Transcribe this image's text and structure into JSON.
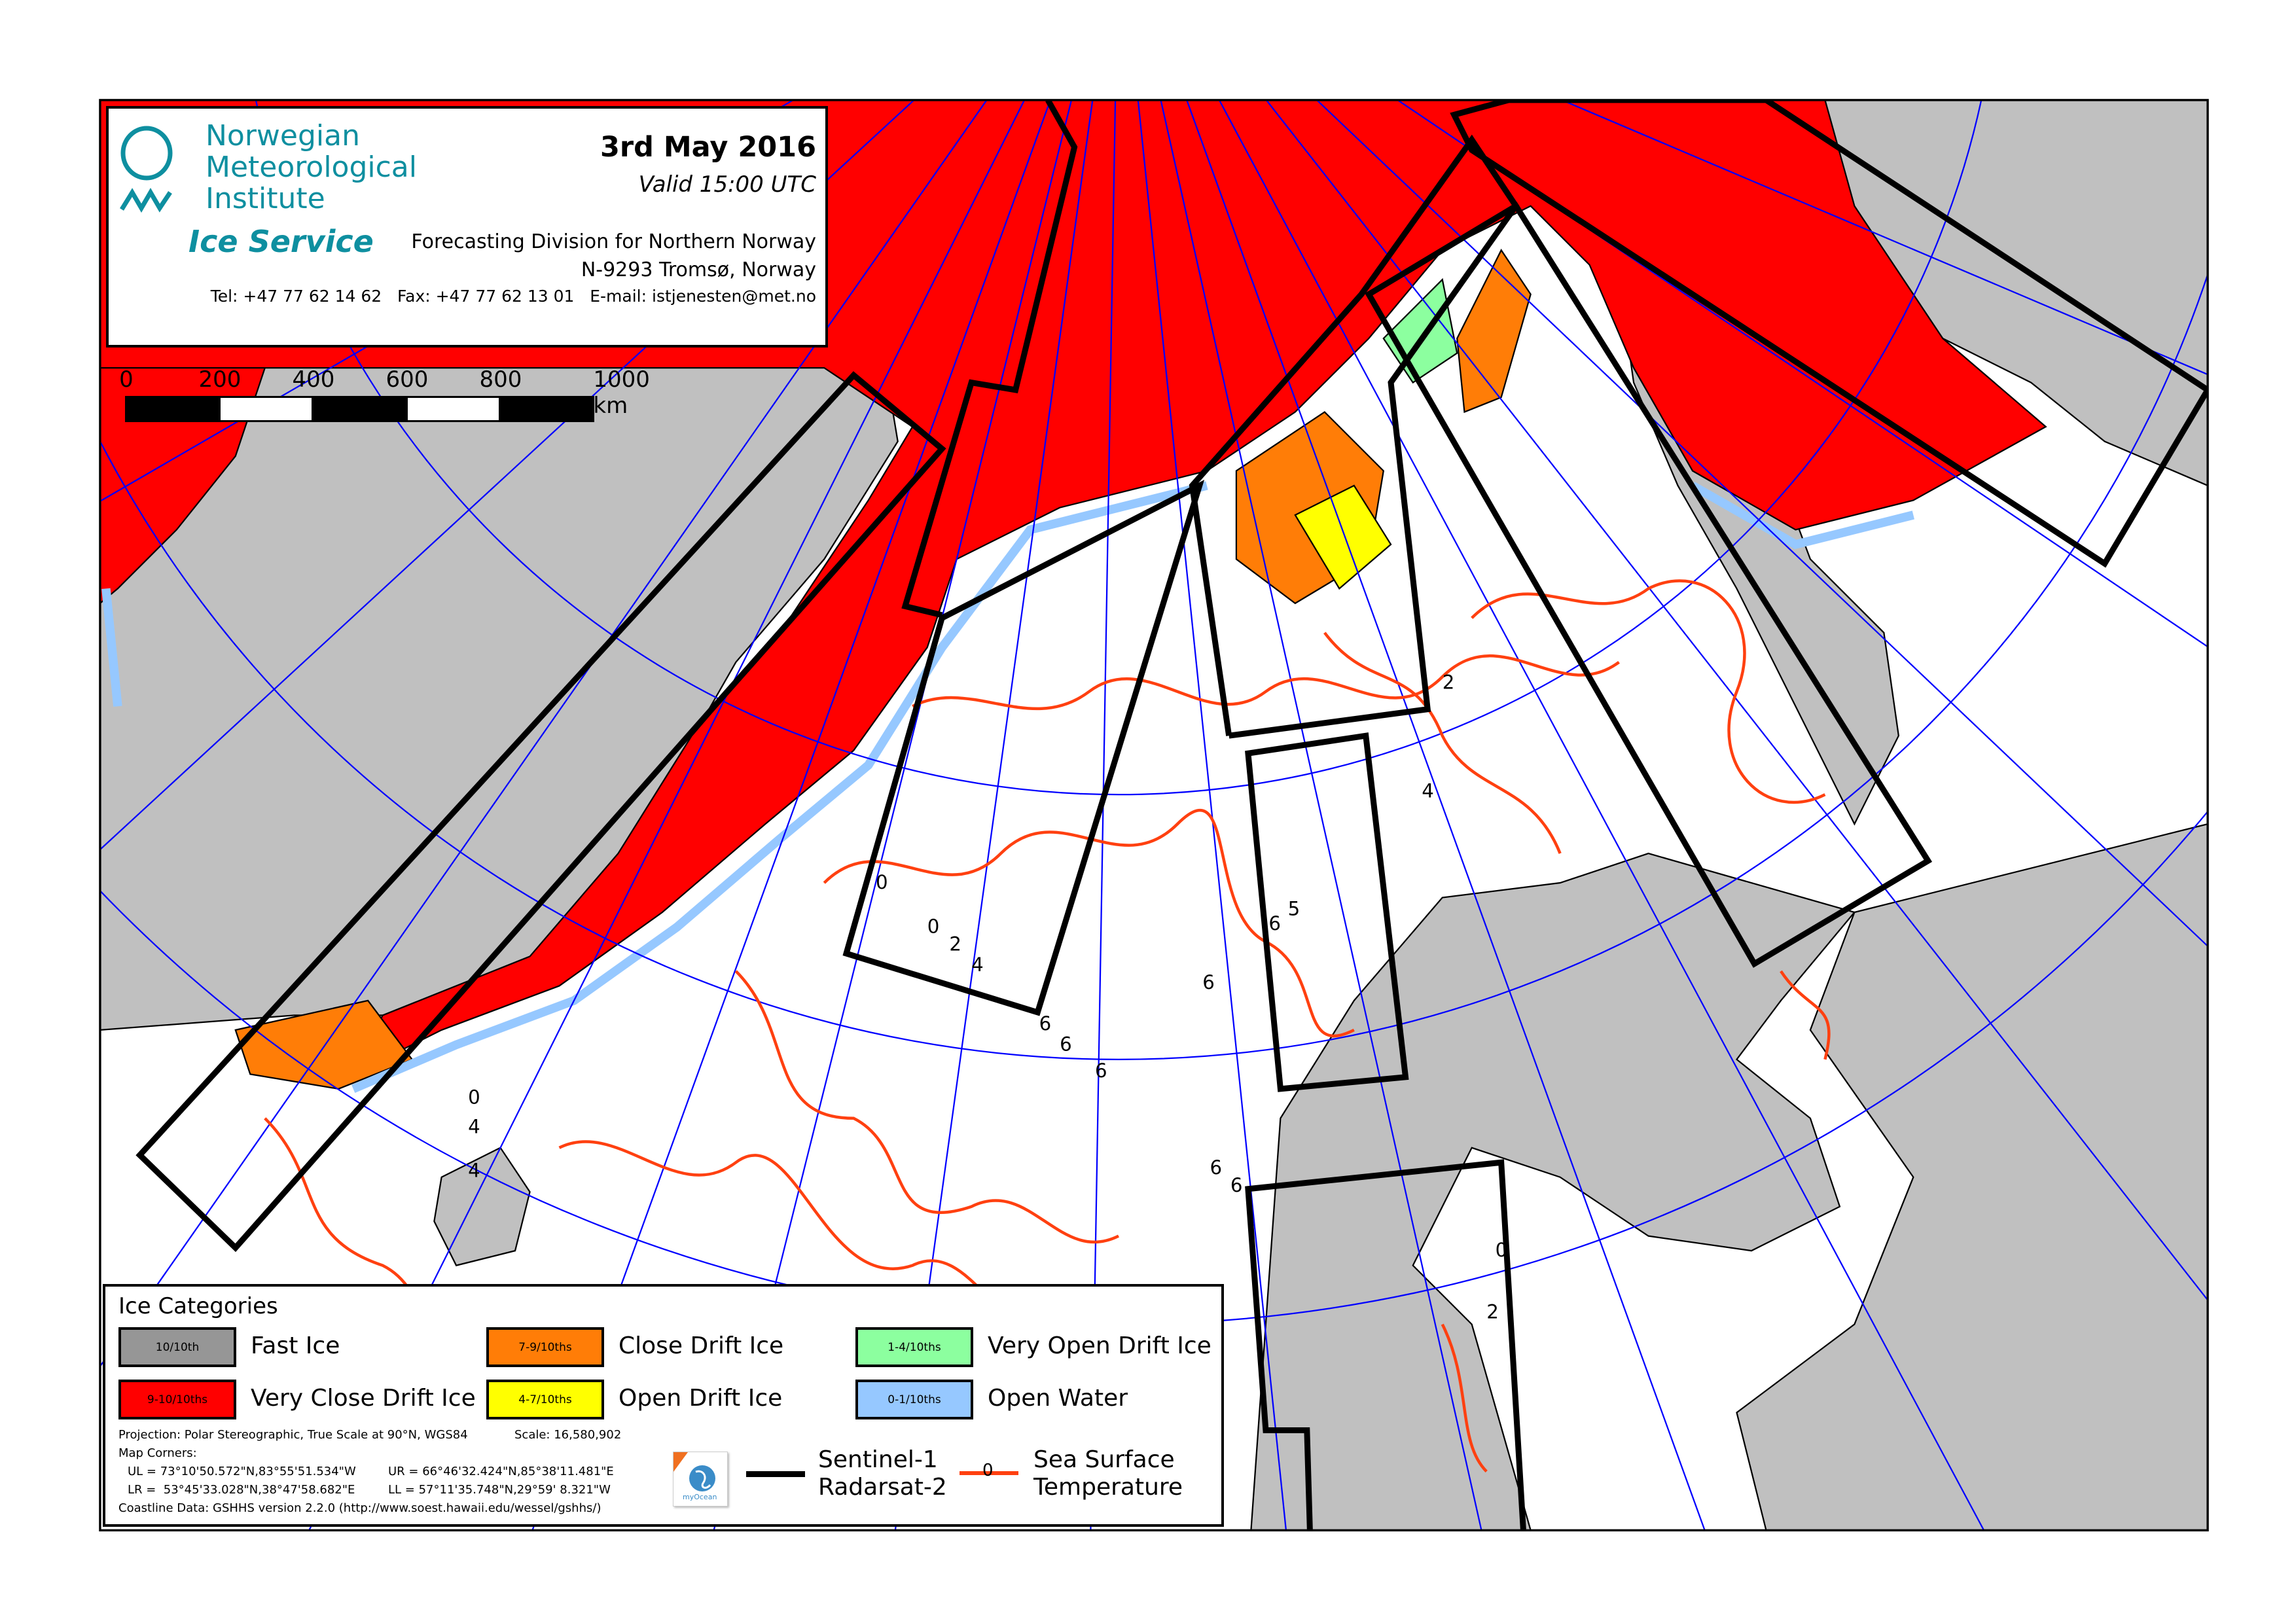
{
  "header": {
    "org_line1": "Norwegian",
    "org_line2": "Meteorological",
    "org_line3": "Institute",
    "service": "Ice Service",
    "date": "3rd May 2016",
    "valid": "Valid 15:00 UTC",
    "division": "Forecasting Division for Northern Norway",
    "address": "N-9293 Tromsø, Norway",
    "contact": "Tel: +47 77 62 14 62   Fax: +47 77 62 13 01   E-mail: istjenesten@met.no",
    "brand_color": "#0e8fa0"
  },
  "scale_bar": {
    "labels": [
      "0",
      "200",
      "400",
      "600",
      "800",
      "1000 km"
    ]
  },
  "legend": {
    "title": "Ice Categories",
    "categories": [
      {
        "code": "10/10th",
        "name": "Fast Ice",
        "color": "#969696"
      },
      {
        "code": "9-10/10ths",
        "name": "Very Close Drift Ice",
        "color": "#ff0000"
      },
      {
        "code": "7-9/10ths",
        "name": "Close Drift Ice",
        "color": "#ff7d07"
      },
      {
        "code": "4-7/10ths",
        "name": "Open Drift Ice",
        "color": "#ffff00"
      },
      {
        "code": "1-4/10ths",
        "name": "Very Open Drift Ice",
        "color": "#8cff9f"
      },
      {
        "code": "0-1/10ths",
        "name": "Open Water",
        "color": "#96c8ff"
      }
    ],
    "projection": "Projection: Polar Stereographic, True Scale at 90°N, WGS84",
    "scale": "Scale: 16,580,902",
    "map_corners_label": "Map Corners:",
    "ul": "UL = 73°10'50.572\"N,83°55'51.534\"W",
    "ur": "UR = 66°46'32.424\"N,85°38'11.481\"E",
    "lr": "LR =  53°45'33.028\"N,38°47'58.682\"E",
    "ll": "LL = 57°11'35.748\"N,29°59' 8.321\"W",
    "coastline": "Coastline Data: GSHHS version 2.2.0 (http://www.soest.hawaii.edu/wessel/gshhs/)",
    "logo_text": "myOcean",
    "sat_line1": "Sentinel-1",
    "sat_line2": "Radarsat-2",
    "sst_marker": "0",
    "sst_line1": "Sea Surface",
    "sst_line2": "Temperature",
    "sat_color": "#000000",
    "sst_color": "#ff4010"
  },
  "map": {
    "land_color": "#c0c0c0",
    "sea_color": "#ffffff",
    "graticule_color": "#0000ff",
    "contour_labels": [
      "0",
      "0",
      "2",
      "4",
      "6",
      "6",
      "6",
      "6",
      "5",
      "6",
      "2",
      "4",
      "0",
      "4",
      "4",
      "6",
      "6",
      "0",
      "2"
    ]
  }
}
